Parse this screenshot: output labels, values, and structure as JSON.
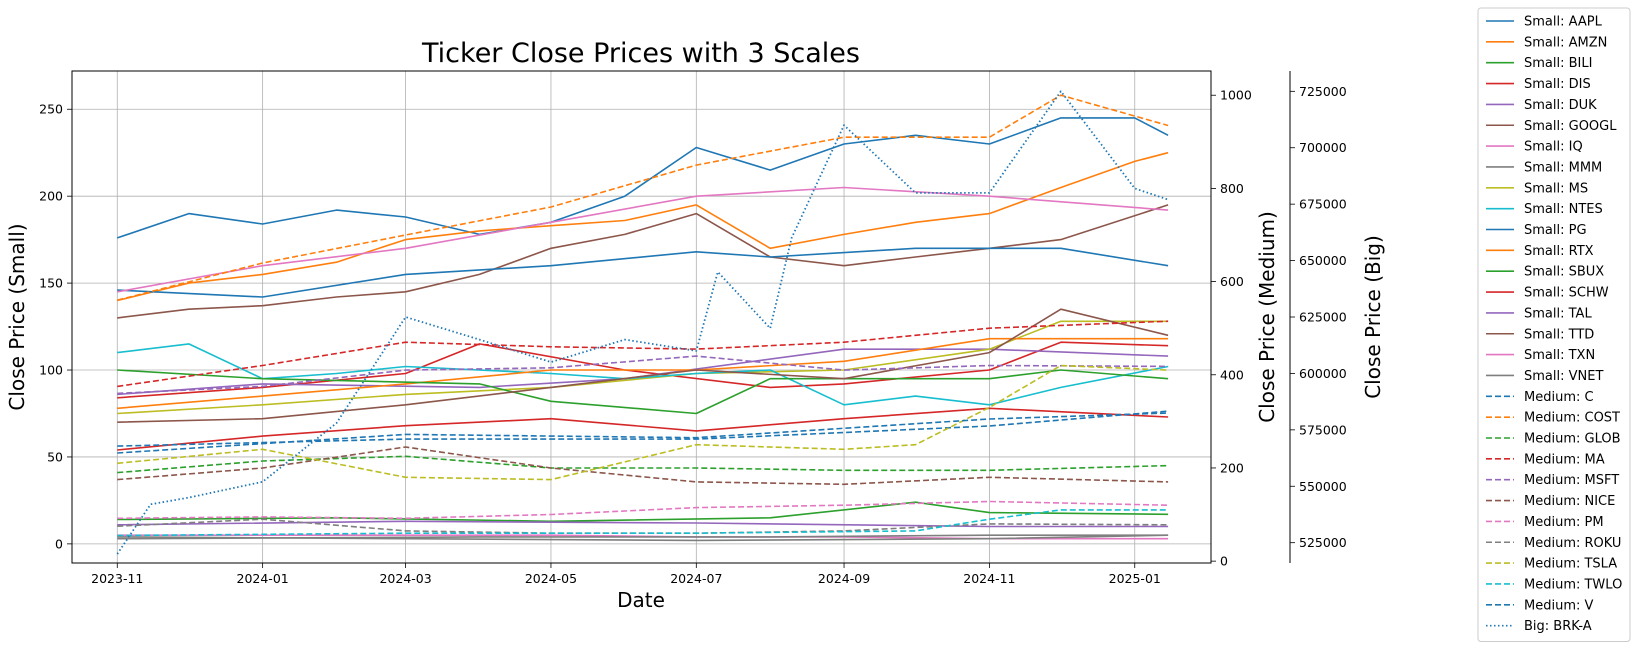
{
  "chart_data": {
    "type": "line",
    "title": "Ticker Close Prices with 3 Scales",
    "xlabel": "Date",
    "ylabel_left": "Close Price (Small)",
    "ylabel_right_1": "Close Price (Medium)",
    "ylabel_right_2": "Close Price (Big)",
    "x_range": [
      "2023-10-13",
      "2025-02-02"
    ],
    "x_ticks": [
      "2023-11",
      "2024-01",
      "2024-03",
      "2024-05",
      "2024-07",
      "2024-09",
      "2024-11",
      "2025-01"
    ],
    "ylim_small": [
      -11,
      272
    ],
    "yticks_small": [
      0,
      50,
      100,
      150,
      200,
      250
    ],
    "ylim_medium": [
      -4,
      1052
    ],
    "yticks_medium": [
      0,
      200,
      400,
      600,
      800,
      1000
    ],
    "ylim_big": [
      516000,
      734000
    ],
    "yticks_big": [
      525000,
      550000,
      575000,
      600000,
      625000,
      650000,
      675000,
      700000,
      725000
    ],
    "grid": true,
    "legend_position": "outside-right",
    "series": [
      {
        "name": "Small: AAPL",
        "axis": "small",
        "color": "#1f77b4",
        "style": "solid",
        "x": [
          "2023-11-01",
          "2023-12-01",
          "2024-01-01",
          "2024-02-01",
          "2024-03-01",
          "2024-04-01",
          "2024-05-01",
          "2024-06-01",
          "2024-07-01",
          "2024-08-01",
          "2024-09-01",
          "2024-10-01",
          "2024-11-01",
          "2024-12-01",
          "2025-01-01",
          "2025-01-15"
        ],
        "values": [
          176,
          190,
          184,
          192,
          188,
          178,
          185,
          200,
          228,
          215,
          230,
          235,
          230,
          245,
          245,
          235
        ]
      },
      {
        "name": "Small: AMZN",
        "axis": "small",
        "color": "#ff7f0e",
        "style": "solid",
        "x": [
          "2023-11-01",
          "2023-12-01",
          "2024-01-01",
          "2024-02-01",
          "2024-03-01",
          "2024-04-01",
          "2024-05-01",
          "2024-06-01",
          "2024-07-01",
          "2024-08-01",
          "2024-09-01",
          "2024-10-01",
          "2024-11-01",
          "2024-12-01",
          "2025-01-01",
          "2025-01-15"
        ],
        "values": [
          140,
          150,
          155,
          162,
          175,
          180,
          183,
          186,
          195,
          170,
          178,
          185,
          190,
          205,
          220,
          225
        ]
      },
      {
        "name": "Small: BILI",
        "axis": "small",
        "color": "#2ca02c",
        "style": "solid",
        "x": [
          "2023-11-01",
          "2024-02-01",
          "2024-05-01",
          "2024-08-01",
          "2024-10-01",
          "2024-11-01",
          "2025-01-15"
        ],
        "values": [
          14,
          15,
          13,
          15,
          24,
          18,
          17
        ]
      },
      {
        "name": "Small: DIS",
        "axis": "small",
        "color": "#d62728",
        "style": "solid",
        "x": [
          "2023-11-01",
          "2024-01-01",
          "2024-03-01",
          "2024-04-01",
          "2024-06-01",
          "2024-08-01",
          "2024-09-01",
          "2024-11-01",
          "2024-12-01",
          "2025-01-15"
        ],
        "values": [
          84,
          90,
          98,
          115,
          100,
          90,
          92,
          100,
          116,
          114
        ]
      },
      {
        "name": "Small: DUK",
        "axis": "small",
        "color": "#9467bd",
        "style": "solid",
        "x": [
          "2023-11-01",
          "2024-01-01",
          "2024-04-01",
          "2024-06-01",
          "2024-09-01",
          "2024-11-01",
          "2025-01-15"
        ],
        "values": [
          86,
          92,
          90,
          95,
          112,
          112,
          108
        ]
      },
      {
        "name": "Small: GOOGL",
        "axis": "small",
        "color": "#8c564b",
        "style": "solid",
        "x": [
          "2023-11-01",
          "2023-12-01",
          "2024-01-01",
          "2024-02-01",
          "2024-03-01",
          "2024-04-01",
          "2024-05-01",
          "2024-06-01",
          "2024-07-01",
          "2024-08-01",
          "2024-09-01",
          "2024-10-01",
          "2024-11-01",
          "2024-12-01",
          "2025-01-15"
        ],
        "values": [
          130,
          135,
          137,
          142,
          145,
          155,
          170,
          178,
          190,
          165,
          160,
          165,
          170,
          175,
          195
        ]
      },
      {
        "name": "Small: IQ",
        "axis": "small",
        "color": "#e377c2",
        "style": "solid",
        "x": [
          "2023-11-01",
          "2024-01-01",
          "2024-03-01",
          "2024-05-01",
          "2024-07-01",
          "2024-09-01",
          "2024-11-01",
          "2025-01-15"
        ],
        "values": [
          5,
          5,
          5,
          5,
          4,
          4,
          3,
          3
        ]
      },
      {
        "name": "Small: MMM",
        "axis": "small",
        "color": "#7f7f7f",
        "style": "solid",
        "x": [
          "2023-11-01",
          "2024-04-01",
          "2024-08-01",
          "2024-11-01",
          "2025-01-15"
        ],
        "values": [
          3,
          4,
          4,
          5,
          5
        ]
      },
      {
        "name": "Small: MS",
        "axis": "small",
        "color": "#bcbd22",
        "style": "solid",
        "x": [
          "2023-11-01",
          "2024-01-01",
          "2024-03-01",
          "2024-05-01",
          "2024-07-01",
          "2024-09-01",
          "2024-11-01",
          "2024-12-01",
          "2025-01-15"
        ],
        "values": [
          75,
          80,
          86,
          90,
          98,
          100,
          112,
          128,
          128
        ]
      },
      {
        "name": "Small: NTES",
        "axis": "small",
        "color": "#17becf",
        "style": "solid",
        "x": [
          "2023-11-01",
          "2023-12-01",
          "2024-01-01",
          "2024-02-01",
          "2024-03-01",
          "2024-05-01",
          "2024-06-01",
          "2024-07-01",
          "2024-08-01",
          "2024-09-01",
          "2024-10-01",
          "2024-11-01",
          "2024-12-01",
          "2025-01-15"
        ],
        "values": [
          110,
          115,
          95,
          98,
          102,
          98,
          95,
          98,
          100,
          80,
          85,
          80,
          90,
          102
        ]
      },
      {
        "name": "Small: PG",
        "axis": "small",
        "color": "#1f77b4",
        "style": "solid",
        "x": [
          "2023-11-01",
          "2024-01-01",
          "2024-03-01",
          "2024-05-01",
          "2024-07-01",
          "2024-08-01",
          "2024-10-01",
          "2024-12-01",
          "2025-01-15"
        ],
        "values": [
          146,
          142,
          155,
          160,
          168,
          165,
          170,
          170,
          160
        ]
      },
      {
        "name": "Small: RTX",
        "axis": "small",
        "color": "#ff7f0e",
        "style": "solid",
        "x": [
          "2023-11-01",
          "2024-01-01",
          "2024-03-01",
          "2024-05-01",
          "2024-07-01",
          "2024-09-01",
          "2024-11-01",
          "2025-01-15"
        ],
        "values": [
          78,
          85,
          92,
          100,
          100,
          105,
          118,
          118
        ]
      },
      {
        "name": "Small: SBUX",
        "axis": "small",
        "color": "#2ca02c",
        "style": "solid",
        "x": [
          "2023-11-01",
          "2024-01-01",
          "2024-04-01",
          "2024-05-01",
          "2024-07-01",
          "2024-08-01",
          "2024-09-01",
          "2024-11-01",
          "2024-12-01",
          "2025-01-15"
        ],
        "values": [
          100,
          95,
          92,
          82,
          75,
          95,
          95,
          95,
          100,
          95
        ]
      },
      {
        "name": "Small: SCHW",
        "axis": "small",
        "color": "#d62728",
        "style": "solid",
        "x": [
          "2023-11-01",
          "2024-01-01",
          "2024-03-01",
          "2024-05-01",
          "2024-07-01",
          "2024-09-01",
          "2024-11-01",
          "2025-01-15"
        ],
        "values": [
          54,
          62,
          68,
          72,
          65,
          72,
          78,
          73
        ]
      },
      {
        "name": "Small: TAL",
        "axis": "small",
        "color": "#9467bd",
        "style": "solid",
        "x": [
          "2023-11-01",
          "2024-03-01",
          "2024-07-01",
          "2024-11-01",
          "2025-01-15"
        ],
        "values": [
          11,
          13,
          12,
          10,
          10
        ]
      },
      {
        "name": "Small: TTD",
        "axis": "small",
        "color": "#8c564b",
        "style": "solid",
        "x": [
          "2023-11-01",
          "2024-01-01",
          "2024-03-01",
          "2024-05-01",
          "2024-07-01",
          "2024-09-01",
          "2024-11-01",
          "2024-12-01",
          "2025-01-15"
        ],
        "values": [
          70,
          72,
          80,
          90,
          100,
          95,
          110,
          135,
          120
        ]
      },
      {
        "name": "Small: TXN",
        "axis": "small",
        "color": "#e377c2",
        "style": "solid",
        "x": [
          "2023-11-01",
          "2024-01-01",
          "2024-03-01",
          "2024-05-01",
          "2024-07-01",
          "2024-09-01",
          "2024-11-01",
          "2025-01-15"
        ],
        "values": [
          145,
          160,
          170,
          185,
          200,
          205,
          200,
          192
        ]
      },
      {
        "name": "Small: VNET",
        "axis": "small",
        "color": "#7f7f7f",
        "style": "solid",
        "x": [
          "2023-11-01",
          "2024-03-01",
          "2024-07-01",
          "2024-11-01",
          "2025-01-15"
        ],
        "values": [
          4,
          3,
          2,
          3,
          5
        ]
      },
      {
        "name": "Medium: C",
        "axis": "medium",
        "color": "#1f77b4",
        "style": "dashed",
        "x": [
          "2023-11-01",
          "2024-03-01",
          "2024-07-01",
          "2024-11-01",
          "2025-01-15"
        ],
        "values": [
          247,
          262,
          262,
          290,
          322
        ]
      },
      {
        "name": "Medium: COST",
        "axis": "medium",
        "color": "#ff7f0e",
        "style": "dashed",
        "x": [
          "2023-11-01",
          "2024-01-01",
          "2024-03-01",
          "2024-05-01",
          "2024-07-01",
          "2024-09-01",
          "2024-11-01",
          "2024-12-01",
          "2025-01-15"
        ],
        "values": [
          560,
          640,
          700,
          760,
          850,
          910,
          910,
          1000,
          935
        ]
      },
      {
        "name": "Medium: GLOB",
        "axis": "medium",
        "color": "#2ca02c",
        "style": "dashed",
        "x": [
          "2023-11-01",
          "2024-01-01",
          "2024-03-01",
          "2024-05-01",
          "2024-07-01",
          "2024-09-01",
          "2024-11-01",
          "2025-01-15"
        ],
        "values": [
          190,
          215,
          225,
          200,
          200,
          195,
          195,
          205
        ]
      },
      {
        "name": "Medium: MA",
        "axis": "medium",
        "color": "#d62728",
        "style": "dashed",
        "x": [
          "2023-11-01",
          "2024-01-01",
          "2024-03-01",
          "2024-05-01",
          "2024-07-01",
          "2024-09-01",
          "2024-11-01",
          "2025-01-15"
        ],
        "values": [
          375,
          420,
          470,
          460,
          455,
          470,
          500,
          515
        ]
      },
      {
        "name": "Medium: MSFT",
        "axis": "medium",
        "color": "#9467bd",
        "style": "dashed",
        "x": [
          "2023-11-01",
          "2024-01-01",
          "2024-03-01",
          "2024-05-01",
          "2024-07-01",
          "2024-09-01",
          "2024-11-01",
          "2025-01-15"
        ],
        "values": [
          360,
          375,
          410,
          415,
          440,
          410,
          420,
          418
        ]
      },
      {
        "name": "Medium: NICE",
        "axis": "medium",
        "color": "#8c564b",
        "style": "dashed",
        "x": [
          "2023-11-01",
          "2024-01-01",
          "2024-03-01",
          "2024-05-01",
          "2024-07-01",
          "2024-09-01",
          "2024-11-01",
          "2025-01-15"
        ],
        "values": [
          175,
          200,
          245,
          200,
          170,
          165,
          180,
          170
        ]
      },
      {
        "name": "Medium: PM",
        "axis": "medium",
        "color": "#e377c2",
        "style": "dashed",
        "x": [
          "2023-11-01",
          "2024-01-01",
          "2024-03-01",
          "2024-05-01",
          "2024-07-01",
          "2024-09-01",
          "2024-11-01",
          "2025-01-15"
        ],
        "values": [
          92,
          95,
          92,
          100,
          115,
          120,
          128,
          120
        ]
      },
      {
        "name": "Medium: ROKU",
        "axis": "medium",
        "color": "#7f7f7f",
        "style": "dashed",
        "x": [
          "2023-11-01",
          "2024-01-01",
          "2024-03-01",
          "2024-05-01",
          "2024-07-01",
          "2024-09-01",
          "2024-11-01",
          "2025-01-15"
        ],
        "values": [
          75,
          90,
          65,
          60,
          60,
          65,
          80,
          78
        ]
      },
      {
        "name": "Medium: TSLA",
        "axis": "medium",
        "color": "#bcbd22",
        "style": "dashed",
        "x": [
          "2023-11-01",
          "2024-01-01",
          "2024-03-01",
          "2024-05-01",
          "2024-07-01",
          "2024-09-01",
          "2024-10-01",
          "2024-11-01",
          "2024-12-01",
          "2025-01-15"
        ],
        "values": [
          210,
          240,
          180,
          175,
          250,
          240,
          250,
          330,
          420,
          410
        ]
      },
      {
        "name": "Medium: TWLO",
        "axis": "medium",
        "color": "#17becf",
        "style": "dashed",
        "x": [
          "2023-11-01",
          "2024-03-01",
          "2024-07-01",
          "2024-10-01",
          "2024-11-01",
          "2024-12-01",
          "2025-01-15"
        ],
        "values": [
          55,
          60,
          60,
          65,
          90,
          110,
          110
        ]
      },
      {
        "name": "Medium: V",
        "axis": "medium",
        "color": "#1f77b4",
        "style": "dashed",
        "x": [
          "2023-11-01",
          "2024-03-01",
          "2024-07-01",
          "2024-11-01",
          "2025-01-15"
        ],
        "values": [
          232,
          272,
          265,
          305,
          318
        ]
      },
      {
        "name": "Big: BRK-A",
        "axis": "big",
        "color": "#1f77b4",
        "style": "dotted",
        "x": [
          "2023-11-01",
          "2023-11-15",
          "2023-12-01",
          "2024-01-01",
          "2024-02-01",
          "2024-03-01",
          "2024-04-01",
          "2024-05-01",
          "2024-06-01",
          "2024-07-01",
          "2024-07-10",
          "2024-08-01",
          "2024-08-10",
          "2024-09-01",
          "2024-10-01",
          "2024-11-01",
          "2024-12-01",
          "2025-01-01",
          "2025-01-15"
        ],
        "values": [
          520000,
          542000,
          545000,
          552000,
          578000,
          625000,
          615000,
          605000,
          615000,
          610000,
          645000,
          620000,
          660000,
          710000,
          680000,
          680000,
          725000,
          682000,
          677000
        ]
      }
    ]
  }
}
